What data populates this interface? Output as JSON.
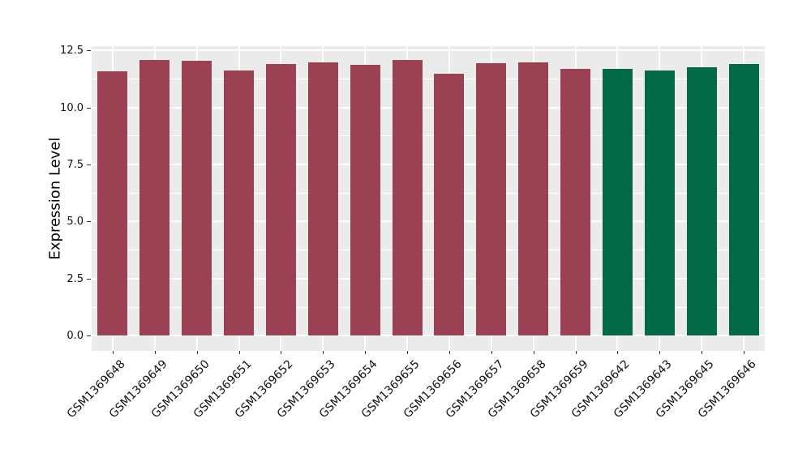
{
  "chart_data": {
    "type": "bar",
    "title": "",
    "xlabel": "",
    "ylabel": "Expression Level",
    "categories": [
      "GSM1369648",
      "GSM1369649",
      "GSM1369650",
      "GSM1369651",
      "GSM1369652",
      "GSM1369653",
      "GSM1369654",
      "GSM1369655",
      "GSM1369656",
      "GSM1369657",
      "GSM1369658",
      "GSM1369659",
      "GSM1369642",
      "GSM1369643",
      "GSM1369645",
      "GSM1369646"
    ],
    "values": [
      11.57,
      12.07,
      12.05,
      11.62,
      11.9,
      11.97,
      11.86,
      12.07,
      11.47,
      11.92,
      11.97,
      11.7,
      11.67,
      11.63,
      11.76,
      11.91
    ],
    "groups": [
      "red",
      "red",
      "red",
      "red",
      "red",
      "red",
      "red",
      "red",
      "red",
      "red",
      "red",
      "red",
      "green",
      "green",
      "green",
      "green"
    ],
    "group_colors": {
      "red": "#9A4253",
      "green": "#016948"
    },
    "ytick_labels": [
      "0.0",
      "2.5",
      "5.0",
      "7.5",
      "10.0",
      "12.5"
    ],
    "yticks": [
      0,
      2.5,
      5,
      7.5,
      10,
      12.5
    ],
    "minor_yticks": [
      1.25,
      3.75,
      6.25,
      8.75,
      11.25
    ],
    "ylim": [
      -0.66,
      12.68
    ],
    "grid": "major-and-minor-horizontal, major-vertical-at-categories",
    "legend": "none",
    "plot_background": "#EBEBEB",
    "grid_color": "#FFFFFF",
    "tick_color": "#333333",
    "bar_relative_width": 0.71
  }
}
